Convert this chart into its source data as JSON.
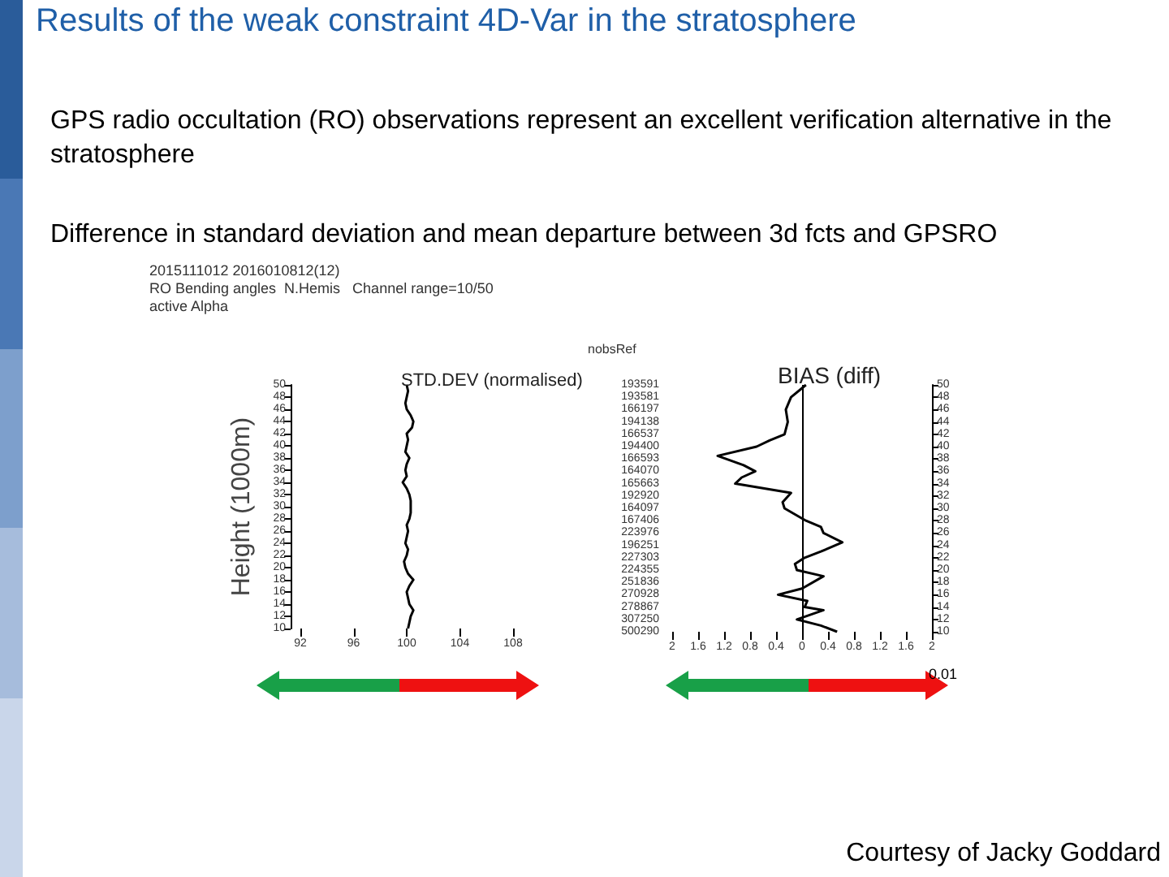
{
  "chart_data": [
    {
      "type": "other",
      "title": "Results of the weak constraint 4D-Var in the stratosphere",
      "annotations": [
        "GPS radio occultation (RO) observations represent an excellent verification alternative in the stratosphere",
        "Difference in standard deviation and mean departure between 3d fcts and GPSRO",
        "Courtesy of Jacky Goddard"
      ]
    },
    {
      "type": "line",
      "title": "STD.DEV (normalised)",
      "ylabel": "Height (1000m)",
      "annotations": [
        "2015111012 2016010812(12)",
        "RO Bending angles  N.Hemis   Channel range=10/50",
        "active Alpha"
      ],
      "marker": "none",
      "line_style": "solid",
      "xlim": [
        92,
        108
      ],
      "xticks": [
        {
          "value": 92,
          "label": "92"
        },
        {
          "value": 96,
          "label": "96"
        },
        {
          "value": 100,
          "label": "100"
        },
        {
          "value": 104,
          "label": "104"
        },
        {
          "value": 108,
          "label": "108"
        }
      ],
      "ylim": [
        10,
        50
      ],
      "yticks": [
        10,
        12,
        14,
        16,
        18,
        20,
        22,
        24,
        26,
        28,
        30,
        32,
        34,
        36,
        38,
        40,
        42,
        44,
        46,
        48,
        50
      ],
      "series": [
        {
          "color": "#000000",
          "x": [
            100.1,
            100.2,
            100.3,
            100.5,
            100.2,
            100.1,
            100.0,
            100.2,
            100.5,
            100.1,
            99.9,
            99.8,
            100.0,
            100.1,
            99.9,
            100.0,
            100.1,
            100.0,
            100.2,
            100.3,
            100.3,
            100.3,
            100.2,
            100.0,
            99.7,
            100.0,
            99.9,
            100.0,
            100.2,
            99.9,
            100.0,
            100.1,
            100.0,
            100.4,
            100.5,
            100.3,
            100.0,
            99.9,
            100.0,
            100.1,
            100.0
          ],
          "values": [
            10,
            11,
            12,
            13,
            14,
            15,
            16,
            17,
            18,
            19,
            20,
            21,
            22,
            23,
            24,
            25,
            26,
            27,
            28,
            29,
            30,
            31,
            32,
            33,
            34,
            35,
            36,
            37,
            38,
            39,
            40,
            41,
            42,
            43,
            44,
            45,
            46,
            47,
            48,
            49,
            50
          ]
        }
      ]
    },
    {
      "type": "line",
      "title": "BIAS (diff)",
      "annotations": [
        "0.01",
        "nobsRef",
        "193591",
        "193581",
        "166197",
        "194138",
        "166537",
        "194400",
        "166593",
        "164070",
        "165663",
        "192920",
        "164097",
        "167406",
        "223976",
        "196251",
        "227303",
        "224355",
        "251836",
        "270928",
        "278867",
        "307250",
        "500290"
      ],
      "marker": "none",
      "line_style": "solid",
      "xlim": [
        -2,
        2
      ],
      "xticks": [
        {
          "value": -2,
          "label": "2"
        },
        {
          "value": -1.6,
          "label": "1.6"
        },
        {
          "value": -1.2,
          "label": "1.2"
        },
        {
          "value": -0.8,
          "label": "0.8"
        },
        {
          "value": -0.4,
          "label": "0.4"
        },
        {
          "value": 0,
          "label": "0"
        },
        {
          "value": 0.4,
          "label": "0.4"
        },
        {
          "value": 0.8,
          "label": "0.8"
        },
        {
          "value": 1.2,
          "label": "1.2"
        },
        {
          "value": 1.6,
          "label": "1.6"
        },
        {
          "value": 2,
          "label": "2"
        }
      ],
      "ylim": [
        10,
        50
      ],
      "yticks": [
        10,
        12,
        14,
        16,
        18,
        20,
        22,
        24,
        26,
        28,
        30,
        32,
        34,
        36,
        38,
        40,
        42,
        44,
        46,
        48,
        50
      ],
      "ref_lines": [
        {
          "axis": "x",
          "value": 0,
          "color": "#000000"
        }
      ],
      "series": [
        {
          "color": "#000000",
          "x": [
            0.54,
            0.29,
            -0.08,
            0.33,
            0.04,
            0.08,
            -0.37,
            0,
            0.33,
            -0.08,
            -0.11,
            0.04,
            0.29,
            0.62,
            0.33,
            0.29,
            0.06,
            -0.27,
            -0.3,
            -0.17,
            -1.03,
            -0.93,
            -0.72,
            -0.9,
            -1.3,
            -0.7,
            -0.5,
            -0.27,
            -0.22,
            -0.25,
            -0.17,
            0.06
          ],
          "values": [
            10,
            11,
            12,
            13.5,
            14,
            15,
            16,
            17,
            19,
            20,
            21,
            22,
            23,
            24.5,
            26,
            27,
            28,
            30,
            31,
            32.5,
            34,
            35,
            36,
            37,
            38.5,
            40,
            41,
            42,
            44,
            46,
            48,
            50
          ]
        }
      ]
    }
  ]
}
